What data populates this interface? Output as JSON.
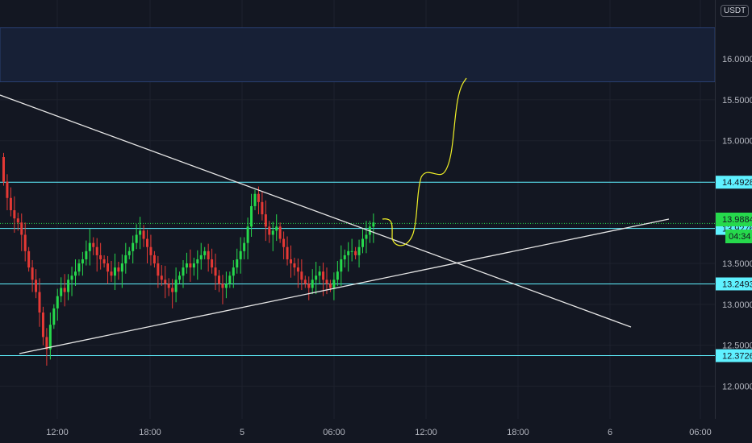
{
  "currency": "USDT",
  "colors": {
    "background": "#131722",
    "grid": "#1e222d",
    "up": "#26d94c",
    "down": "#e53935",
    "level": "#5ff1ff",
    "trendline": "#e6e6e6",
    "projection": "#f1f127",
    "zone": "#172036"
  },
  "chart_data": {
    "type": "candlestick",
    "y_ticks": [
      "16.0000",
      "15.5000",
      "15.0000",
      "13.5000",
      "13.0000",
      "12.5000",
      "12.0000"
    ],
    "x_ticks": [
      "12:00",
      "18:00",
      "5",
      "06:00",
      "12:00",
      "18:00",
      "6",
      "06:00"
    ],
    "levels": [
      {
        "price": 14.4928,
        "label": "14.4928"
      },
      {
        "price": 13.9276,
        "label": "13.9276"
      },
      {
        "price": 13.2493,
        "label": "13.2493"
      },
      {
        "price": 12.3726,
        "label": "12.3726"
      }
    ],
    "last_price": {
      "price": 13.9884,
      "label": "13.9884",
      "countdown": "04:34"
    },
    "resistance_zone": {
      "from": 15.72,
      "to": 16.38
    },
    "ylim": [
      11.6,
      16.72
    ],
    "closes": [
      14.5,
      14.3,
      14.15,
      14.05,
      14.0,
      13.85,
      13.65,
      13.45,
      13.3,
      13.15,
      12.9,
      12.6,
      12.45,
      12.75,
      12.95,
      13.1,
      13.2,
      13.15,
      13.3,
      13.35,
      13.4,
      13.5,
      13.55,
      13.65,
      13.75,
      13.7,
      13.6,
      13.55,
      13.5,
      13.4,
      13.35,
      13.45,
      13.4,
      13.5,
      13.6,
      13.65,
      13.75,
      13.85,
      13.9,
      13.8,
      13.7,
      13.6,
      13.5,
      13.35,
      13.3,
      13.25,
      13.2,
      13.15,
      13.3,
      13.35,
      13.45,
      13.5,
      13.45,
      13.5,
      13.55,
      13.6,
      13.65,
      13.55,
      13.45,
      13.35,
      13.25,
      13.2,
      13.25,
      13.35,
      13.45,
      13.55,
      13.65,
      13.75,
      13.95,
      14.2,
      14.35,
      14.25,
      14.1,
      13.95,
      13.85,
      13.9,
      13.95,
      13.8,
      13.7,
      13.55,
      13.5,
      13.45,
      13.4,
      13.3,
      13.25,
      13.2,
      13.3,
      13.35,
      13.4,
      13.3,
      13.25,
      13.2,
      13.3,
      13.4,
      13.55,
      13.6,
      13.65,
      13.65,
      13.6,
      13.7,
      13.8,
      13.85,
      13.95,
      14.0
    ]
  }
}
